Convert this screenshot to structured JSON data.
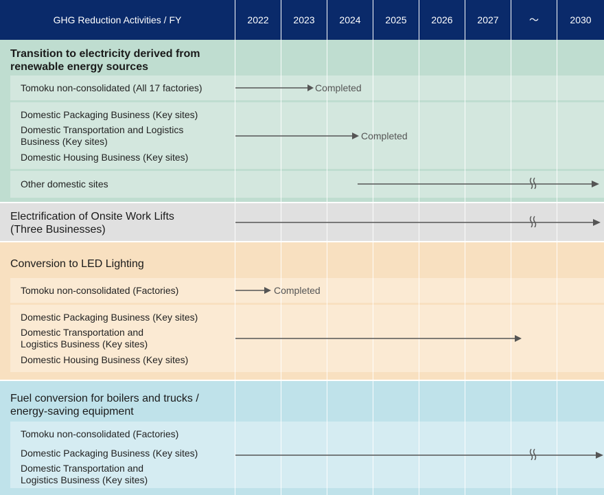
{
  "header": {
    "title": "GHG Reduction Activities / FY",
    "years": [
      "2022",
      "2023",
      "2024",
      "2025",
      "2026",
      "2027",
      "～",
      "2030"
    ]
  },
  "colors": {
    "header_bg": "#0a2a6a",
    "green_band": "#bfddd0",
    "green_row": "#d3e7de",
    "gray_band": "#e0e0e0",
    "orange_band": "#f8e0c0",
    "orange_row": "#fbead3",
    "blue_band": "#bfe2ea",
    "blue_row": "#d5ecf2",
    "arrow": "#555555"
  },
  "sections": [
    {
      "title": [
        "Transition to electricity derived from",
        "renewable energy sources"
      ],
      "rows": [
        {
          "labels": [
            "Tomoku non-consolidated (All 17 factories)"
          ],
          "completed": "Completed"
        },
        {
          "labels": [
            "Domestic Packaging Business (Key sites)",
            "Domestic Transportation and Logistics",
            "Business (Key sites)",
            "Domestic Housing Business (Key sites)"
          ],
          "completed": "Completed"
        },
        {
          "labels": [
            "Other domestic sites"
          ]
        }
      ]
    },
    {
      "title": [
        "Electrification of Onsite Work Lifts",
        "(Three Businesses)"
      ]
    },
    {
      "title": [
        "Conversion to LED Lighting"
      ],
      "rows": [
        {
          "labels": [
            "Tomoku non-consolidated (Factories)"
          ],
          "completed": "Completed"
        },
        {
          "labels": [
            "Domestic Packaging Business (Key sites)",
            "Domestic Transportation and",
            "Logistics Business (Key sites)",
            "Domestic Housing Business (Key sites)"
          ]
        }
      ]
    },
    {
      "title": [
        "Fuel conversion for boilers and trucks /",
        "energy-saving equipment"
      ],
      "rows": [
        {
          "labels": [
            "Tomoku non-consolidated (Factories)",
            "Domestic Packaging Business (Key sites)",
            "Domestic Transportation and",
            "Logistics Business (Key sites)"
          ]
        }
      ]
    }
  ]
}
